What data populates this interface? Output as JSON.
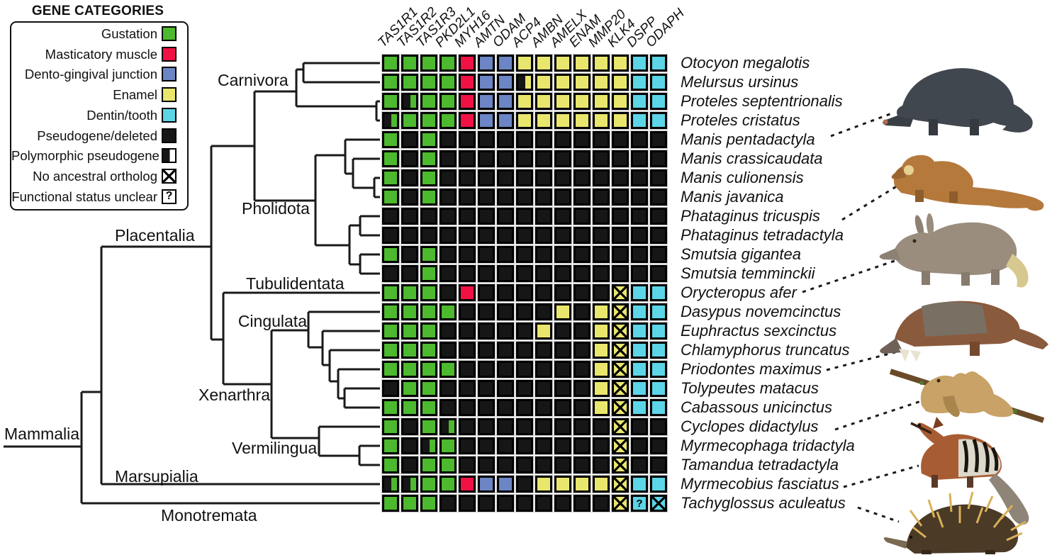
{
  "legend": {
    "title": "GENE CATEGORIES",
    "items": [
      {
        "label": "Gustation",
        "swatch": "G"
      },
      {
        "label": "Masticatory muscle",
        "swatch": "R"
      },
      {
        "label": "Dento-gingival junction",
        "swatch": "B"
      },
      {
        "label": "Enamel",
        "swatch": "Y"
      },
      {
        "label": "Dentin/tooth",
        "swatch": "C"
      },
      {
        "label": "Pseudogene/deleted",
        "swatch": "K"
      },
      {
        "label": "Polymorphic pseudogene",
        "swatch": "pW"
      },
      {
        "label": "No ancestral ortholog",
        "swatch": "xW"
      },
      {
        "label": "Functional status unclear",
        "swatch": "qW"
      }
    ]
  },
  "genes": [
    "TAS1R1",
    "TAS1R2",
    "TAS1R3",
    "PKD2L1",
    "MYH16",
    "AMTN",
    "ODAM",
    "ACP4",
    "AMBN",
    "AMELX",
    "ENAM",
    "MMP20",
    "KLK4",
    "DSPP",
    "ODAPH"
  ],
  "clades": {
    "mammalia": "Mammalia",
    "placentalia": "Placentalia",
    "carnivora": "Carnivora",
    "pholidota": "Pholidota",
    "tubulidentata": "Tubulidentata",
    "cingulata": "Cingulata",
    "xenarthra": "Xenarthra",
    "vermilingua": "Vermilingua",
    "marsupialia": "Marsupialia",
    "monotremata": "Monotremata"
  },
  "cell_codes": {
    "G": "functional gustation gene",
    "R": "functional masticatory muscle gene",
    "B": "functional dento-gingival junction gene",
    "Y": "functional enamel gene",
    "C": "functional dentin/tooth gene",
    "K": "pseudogene/deleted",
    "pG": "polymorphic pseudogene (gustation)",
    "pY": "polymorphic pseudogene (enamel)",
    "xY": "no ancestral ortholog (enamel)",
    "xC": "no ancestral ortholog (dentin/tooth)",
    "qC": "functional status unclear (dentin/tooth)"
  },
  "species": [
    {
      "name": "Otocyon megalotis",
      "cells": [
        "G",
        "G",
        "G",
        "G",
        "R",
        "B",
        "B",
        "Y",
        "Y",
        "Y",
        "Y",
        "Y",
        "Y",
        "C",
        "C"
      ]
    },
    {
      "name": "Melursus ursinus",
      "cells": [
        "G",
        "G",
        "G",
        "G",
        "R",
        "B",
        "B",
        "pY",
        "Y",
        "Y",
        "Y",
        "Y",
        "Y",
        "C",
        "C"
      ]
    },
    {
      "name": "Proteles septentrionalis",
      "cells": [
        "G",
        "pG",
        "G",
        "G",
        "R",
        "B",
        "B",
        "Y",
        "Y",
        "Y",
        "Y",
        "Y",
        "Y",
        "C",
        "C"
      ]
    },
    {
      "name": "Proteles cristatus",
      "cells": [
        "pG",
        "G",
        "G",
        "G",
        "R",
        "B",
        "B",
        "Y",
        "Y",
        "Y",
        "Y",
        "Y",
        "Y",
        "C",
        "C"
      ]
    },
    {
      "name": "Manis pentadactyla",
      "cells": [
        "G",
        "K",
        "G",
        "K",
        "K",
        "K",
        "K",
        "K",
        "K",
        "K",
        "K",
        "K",
        "K",
        "K",
        "K"
      ]
    },
    {
      "name": "Manis crassicaudata",
      "cells": [
        "G",
        "K",
        "G",
        "K",
        "K",
        "K",
        "K",
        "K",
        "K",
        "K",
        "K",
        "K",
        "K",
        "K",
        "K"
      ]
    },
    {
      "name": "Manis culionensis",
      "cells": [
        "G",
        "K",
        "G",
        "K",
        "K",
        "K",
        "K",
        "K",
        "K",
        "K",
        "K",
        "K",
        "K",
        "K",
        "K"
      ]
    },
    {
      "name": "Manis javanica",
      "cells": [
        "G",
        "K",
        "G",
        "K",
        "K",
        "K",
        "K",
        "K",
        "K",
        "K",
        "K",
        "K",
        "K",
        "K",
        "K"
      ]
    },
    {
      "name": "Phataginus tricuspis",
      "cells": [
        "K",
        "K",
        "K",
        "K",
        "K",
        "K",
        "K",
        "K",
        "K",
        "K",
        "K",
        "K",
        "K",
        "K",
        "K"
      ]
    },
    {
      "name": "Phataginus tetradactyla",
      "cells": [
        "K",
        "K",
        "K",
        "K",
        "K",
        "K",
        "K",
        "K",
        "K",
        "K",
        "K",
        "K",
        "K",
        "K",
        "K"
      ]
    },
    {
      "name": "Smutsia gigantea",
      "cells": [
        "G",
        "K",
        "G",
        "K",
        "K",
        "K",
        "K",
        "K",
        "K",
        "K",
        "K",
        "K",
        "K",
        "K",
        "K"
      ]
    },
    {
      "name": "Smutsia temminckii",
      "cells": [
        "K",
        "K",
        "G",
        "K",
        "K",
        "K",
        "K",
        "K",
        "K",
        "K",
        "K",
        "K",
        "K",
        "K",
        "K"
      ]
    },
    {
      "name": "Orycteropus afer",
      "cells": [
        "G",
        "G",
        "G",
        "K",
        "R",
        "K",
        "K",
        "K",
        "K",
        "K",
        "K",
        "K",
        "xY",
        "C",
        "C"
      ]
    },
    {
      "name": "Dasypus novemcinctus",
      "cells": [
        "G",
        "G",
        "G",
        "G",
        "K",
        "K",
        "K",
        "K",
        "K",
        "Y",
        "K",
        "Y",
        "xY",
        "C",
        "C"
      ]
    },
    {
      "name": "Euphractus sexcinctus",
      "cells": [
        "G",
        "G",
        "G",
        "K",
        "K",
        "K",
        "K",
        "K",
        "Y",
        "K",
        "K",
        "Y",
        "xY",
        "C",
        "C"
      ]
    },
    {
      "name": "Chlamyphorus truncatus",
      "cells": [
        "G",
        "G",
        "G",
        "K",
        "K",
        "K",
        "K",
        "K",
        "K",
        "K",
        "K",
        "Y",
        "xY",
        "C",
        "C"
      ]
    },
    {
      "name": "Priodontes maximus",
      "cells": [
        "G",
        "G",
        "G",
        "G",
        "K",
        "K",
        "K",
        "K",
        "K",
        "K",
        "K",
        "Y",
        "xY",
        "C",
        "C"
      ]
    },
    {
      "name": "Tolypeutes matacus",
      "cells": [
        "K",
        "G",
        "G",
        "K",
        "K",
        "K",
        "K",
        "K",
        "K",
        "K",
        "K",
        "Y",
        "xY",
        "C",
        "C"
      ]
    },
    {
      "name": "Cabassous unicinctus",
      "cells": [
        "G",
        "G",
        "G",
        "K",
        "K",
        "K",
        "K",
        "K",
        "K",
        "K",
        "K",
        "Y",
        "xY",
        "C",
        "C"
      ]
    },
    {
      "name": "Cyclopes didactylus",
      "cells": [
        "G",
        "K",
        "G",
        "pG",
        "K",
        "K",
        "K",
        "K",
        "K",
        "K",
        "K",
        "K",
        "xY",
        "K",
        "K"
      ]
    },
    {
      "name": "Myrmecophaga tridactyla",
      "cells": [
        "G",
        "K",
        "pG",
        "G",
        "K",
        "K",
        "K",
        "K",
        "K",
        "K",
        "K",
        "K",
        "xY",
        "K",
        "K"
      ]
    },
    {
      "name": "Tamandua tetradactyla",
      "cells": [
        "G",
        "K",
        "G",
        "G",
        "K",
        "K",
        "K",
        "K",
        "K",
        "K",
        "K",
        "K",
        "xY",
        "K",
        "K"
      ]
    },
    {
      "name": "Myrmecobius fasciatus",
      "cells": [
        "pG",
        "pG",
        "G",
        "G",
        "R",
        "B",
        "B",
        "K",
        "Y",
        "Y",
        "Y",
        "Y",
        "xY",
        "C",
        "C"
      ]
    },
    {
      "name": "Tachyglossus aculeatus",
      "cells": [
        "G",
        "G",
        "G",
        "K",
        "K",
        "K",
        "K",
        "K",
        "K",
        "K",
        "K",
        "K",
        "xY",
        "qC",
        "xC"
      ]
    }
  ],
  "colors": {
    "gustation": "#4cb92e",
    "masticatory_muscle": "#f01245",
    "dento_gingival": "#6c85c4",
    "enamel": "#e9e66e",
    "dentin_tooth": "#5cd5e6",
    "pseudogene": "#161616",
    "tree": "#1a1a1a"
  },
  "illustrations": [
    {
      "icon": "chinese-pangolin-illustration"
    },
    {
      "icon": "tree-pangolin-illustration"
    },
    {
      "icon": "aardvark-illustration"
    },
    {
      "icon": "giant-armadillo-illustration"
    },
    {
      "icon": "silky-anteater-illustration"
    },
    {
      "icon": "numbat-illustration"
    },
    {
      "icon": "echidna-illustration"
    }
  ]
}
